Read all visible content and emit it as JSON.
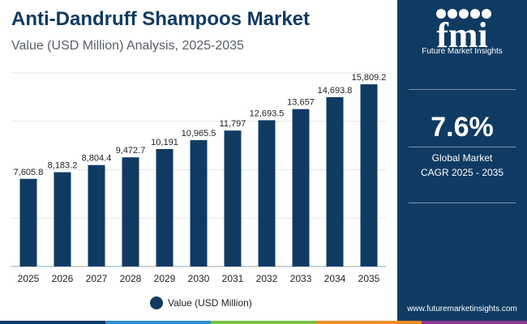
{
  "header": {
    "title": "Anti-Dandruff Shampoos Market",
    "subtitle": "Value (USD Million) Analysis, 2025-2035"
  },
  "chart_data": {
    "type": "bar",
    "categories": [
      "2025",
      "2026",
      "2027",
      "2028",
      "2029",
      "2030",
      "2031",
      "2032",
      "2033",
      "2034",
      "2035"
    ],
    "series": [
      {
        "name": "Value (USD Million)",
        "values": [
          7605.8,
          8183.2,
          8804.4,
          9472.7,
          10191,
          10965.5,
          11797,
          12693.5,
          13657,
          14693.8,
          15809.2
        ],
        "labels": [
          "7,605.8",
          "8,183.2",
          "8,804.4",
          "9,472.7",
          "10,191",
          "10,965.5",
          "11,797",
          "12,693.5",
          "13,657",
          "14,693.8",
          "15,809.2"
        ]
      }
    ],
    "ylim": [
      0,
      16800
    ],
    "grid": true,
    "legend": "bottom-center",
    "bar_color": "#0f3b63"
  },
  "legend": {
    "label": "Value (USD Million)"
  },
  "panel": {
    "logo_text": "fmi",
    "logo_caption": "Future Market Insights",
    "cagr_value": "7.6%",
    "cagr_line1": "Global Market",
    "cagr_line2": "CAGR 2025 - 2035",
    "url": "www.futuremarketinsights.com",
    "color": "#0f3b63"
  },
  "colors": {
    "bar": "#0f3b63",
    "stripe": [
      "#0f3b63",
      "#2e8fd6",
      "#7ac143",
      "#f28c28",
      "#8a3b8f"
    ]
  }
}
